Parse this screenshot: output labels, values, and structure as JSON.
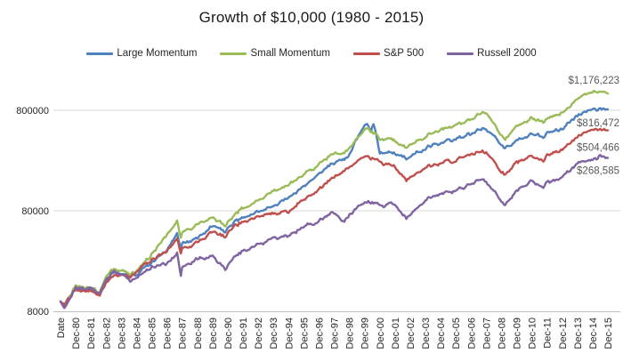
{
  "title": "Growth of $10,000 (1980 - 2015)",
  "chart_data": {
    "type": "line",
    "title": "Growth of $10,000 (1980 - 2015)",
    "y_scale": "log",
    "grid": "horizontal-only",
    "legend_position": "top",
    "start_value": 10000,
    "y_ticks": [
      {
        "label": "8000",
        "value": 8000
      },
      {
        "label": "80000",
        "value": 80000
      },
      {
        "label": "800000",
        "value": 800000
      }
    ],
    "x_tick_labels": [
      "Date",
      "Dec-80",
      "Dec-81",
      "Dec-82",
      "Dec-83",
      "Dec-84",
      "Dec-85",
      "Dec-86",
      "Dec-87",
      "Dec-88",
      "Dec-89",
      "Dec-90",
      "Dec-91",
      "Dec-92",
      "Dec-93",
      "Dec-94",
      "Dec-95",
      "Dec-96",
      "Dec-97",
      "Dec-98",
      "Dec-99",
      "Dec-00",
      "Dec-01",
      "Dec-02",
      "Dec-03",
      "Dec-04",
      "Dec-05",
      "Dec-06",
      "Dec-07",
      "Dec-08",
      "Dec-09",
      "Dec-10",
      "Dec-11",
      "Dec-12",
      "Dec-13",
      "Dec-14",
      "Dec-15"
    ],
    "months_total": 432,
    "series": [
      {
        "name": "Large Momentum",
        "color": "#4F81BD",
        "end_label": "$816,472",
        "end_value": 816472,
        "anchors": [
          [
            0,
            10000
          ],
          [
            3,
            9300
          ],
          [
            12,
            13800
          ],
          [
            24,
            13200
          ],
          [
            31,
            12100
          ],
          [
            36,
            16400
          ],
          [
            42,
            20000
          ],
          [
            48,
            19200
          ],
          [
            55,
            17800
          ],
          [
            60,
            18800
          ],
          [
            72,
            24500
          ],
          [
            84,
            32000
          ],
          [
            92,
            47000
          ],
          [
            95,
            33500
          ],
          [
            96,
            37000
          ],
          [
            108,
            43000
          ],
          [
            120,
            57000
          ],
          [
            130,
            50000
          ],
          [
            132,
            55000
          ],
          [
            144,
            70000
          ],
          [
            156,
            78000
          ],
          [
            168,
            90000
          ],
          [
            180,
            105000
          ],
          [
            192,
            140000
          ],
          [
            204,
            184000
          ],
          [
            216,
            245000
          ],
          [
            224,
            255000
          ],
          [
            228,
            300000
          ],
          [
            240,
            560000
          ],
          [
            242,
            590000
          ],
          [
            245,
            500000
          ],
          [
            247,
            585000
          ],
          [
            252,
            310000
          ],
          [
            264,
            295000
          ],
          [
            273,
            265000
          ],
          [
            276,
            275000
          ],
          [
            288,
            335000
          ],
          [
            300,
            375000
          ],
          [
            312,
            405000
          ],
          [
            324,
            465000
          ],
          [
            334,
            530000
          ],
          [
            336,
            515000
          ],
          [
            348,
            370000
          ],
          [
            351,
            330000
          ],
          [
            360,
            400000
          ],
          [
            372,
            470000
          ],
          [
            381,
            440000
          ],
          [
            384,
            475000
          ],
          [
            396,
            530000
          ],
          [
            408,
            720000
          ],
          [
            420,
            800000
          ],
          [
            426,
            830000
          ],
          [
            432,
            816472
          ]
        ]
      },
      {
        "name": "Small Momentum",
        "color": "#9BBB59",
        "end_label": "$1,176,223",
        "end_value": 1176223,
        "anchors": [
          [
            0,
            10000
          ],
          [
            3,
            9300
          ],
          [
            12,
            14300
          ],
          [
            24,
            13600
          ],
          [
            31,
            12600
          ],
          [
            36,
            17500
          ],
          [
            42,
            21500
          ],
          [
            48,
            21000
          ],
          [
            55,
            18600
          ],
          [
            60,
            20000
          ],
          [
            72,
            30000
          ],
          [
            84,
            46000
          ],
          [
            92,
            63000
          ],
          [
            95,
            43000
          ],
          [
            96,
            48000
          ],
          [
            108,
            58000
          ],
          [
            120,
            70000
          ],
          [
            130,
            56000
          ],
          [
            132,
            63000
          ],
          [
            144,
            86000
          ],
          [
            156,
            100000
          ],
          [
            168,
            124000
          ],
          [
            180,
            142000
          ],
          [
            192,
            185000
          ],
          [
            204,
            231000
          ],
          [
            216,
            300000
          ],
          [
            224,
            295000
          ],
          [
            228,
            345000
          ],
          [
            240,
            500000
          ],
          [
            243,
            520000
          ],
          [
            252,
            420000
          ],
          [
            264,
            400000
          ],
          [
            273,
            340000
          ],
          [
            276,
            350000
          ],
          [
            288,
            440000
          ],
          [
            300,
            510000
          ],
          [
            312,
            560000
          ],
          [
            324,
            650000
          ],
          [
            334,
            780000
          ],
          [
            336,
            750000
          ],
          [
            348,
            450000
          ],
          [
            351,
            400000
          ],
          [
            360,
            560000
          ],
          [
            372,
            680000
          ],
          [
            381,
            610000
          ],
          [
            384,
            660000
          ],
          [
            396,
            760000
          ],
          [
            408,
            1050000
          ],
          [
            420,
            1200000
          ],
          [
            426,
            1230000
          ],
          [
            432,
            1176223
          ]
        ]
      },
      {
        "name": "S&P 500",
        "color": "#C0504D",
        "end_label": "$504,466",
        "end_value": 504466,
        "anchors": [
          [
            0,
            10000
          ],
          [
            3,
            9200
          ],
          [
            12,
            13200
          ],
          [
            24,
            12600
          ],
          [
            31,
            11600
          ],
          [
            36,
            15300
          ],
          [
            42,
            18000
          ],
          [
            48,
            18700
          ],
          [
            55,
            17500
          ],
          [
            60,
            19900
          ],
          [
            72,
            26300
          ],
          [
            84,
            31200
          ],
          [
            92,
            42000
          ],
          [
            95,
            29500
          ],
          [
            96,
            32800
          ],
          [
            108,
            38300
          ],
          [
            120,
            50400
          ],
          [
            130,
            44000
          ],
          [
            132,
            48900
          ],
          [
            144,
            63800
          ],
          [
            156,
            68600
          ],
          [
            168,
            75500
          ],
          [
            180,
            76500
          ],
          [
            192,
            105300
          ],
          [
            204,
            129500
          ],
          [
            216,
            172800
          ],
          [
            224,
            195000
          ],
          [
            228,
            222200
          ],
          [
            240,
            268800
          ],
          [
            243,
            275000
          ],
          [
            252,
            244400
          ],
          [
            264,
            215300
          ],
          [
            273,
            161000
          ],
          [
            276,
            167700
          ],
          [
            288,
            215800
          ],
          [
            300,
            239400
          ],
          [
            312,
            251100
          ],
          [
            324,
            290800
          ],
          [
            334,
            310000
          ],
          [
            336,
            306800
          ],
          [
            348,
            193300
          ],
          [
            351,
            179000
          ],
          [
            360,
            244500
          ],
          [
            372,
            281400
          ],
          [
            381,
            250000
          ],
          [
            384,
            287300
          ],
          [
            396,
            333300
          ],
          [
            408,
            441200
          ],
          [
            420,
            501700
          ],
          [
            426,
            520000
          ],
          [
            432,
            504466
          ]
        ]
      },
      {
        "name": "Russell 2000",
        "color": "#8064A2",
        "end_label": "$268,585",
        "end_value": 268585,
        "anchors": [
          [
            0,
            10000
          ],
          [
            3,
            8600
          ],
          [
            12,
            13700
          ],
          [
            24,
            13300
          ],
          [
            31,
            12300
          ],
          [
            36,
            16200
          ],
          [
            42,
            20500
          ],
          [
            48,
            19000
          ],
          [
            55,
            16000
          ],
          [
            60,
            17300
          ],
          [
            72,
            22000
          ],
          [
            84,
            24000
          ],
          [
            92,
            30000
          ],
          [
            95,
            18000
          ],
          [
            96,
            21500
          ],
          [
            108,
            26500
          ],
          [
            120,
            28500
          ],
          [
            130,
            21000
          ],
          [
            132,
            23500
          ],
          [
            144,
            32000
          ],
          [
            156,
            37000
          ],
          [
            168,
            43000
          ],
          [
            180,
            44000
          ],
          [
            192,
            56000
          ],
          [
            204,
            64000
          ],
          [
            216,
            78000
          ],
          [
            224,
            61000
          ],
          [
            228,
            74000
          ],
          [
            240,
            95000
          ],
          [
            243,
            100000
          ],
          [
            252,
            90000
          ],
          [
            264,
            91000
          ],
          [
            273,
            67000
          ],
          [
            276,
            71000
          ],
          [
            288,
            103000
          ],
          [
            300,
            120000
          ],
          [
            312,
            126000
          ],
          [
            324,
            147000
          ],
          [
            334,
            168000
          ],
          [
            336,
            155000
          ],
          [
            348,
            100000
          ],
          [
            351,
            90000
          ],
          [
            360,
            128000
          ],
          [
            372,
            160000
          ],
          [
            381,
            135000
          ],
          [
            384,
            153000
          ],
          [
            396,
            176000
          ],
          [
            408,
            240000
          ],
          [
            420,
            250000
          ],
          [
            426,
            282000
          ],
          [
            432,
            268585
          ]
        ]
      }
    ],
    "colors": {
      "gridline": "#d9d9d9",
      "axis_line": "#bfbfbf",
      "tick_text": "#262626",
      "end_label_text": "#595959"
    }
  }
}
